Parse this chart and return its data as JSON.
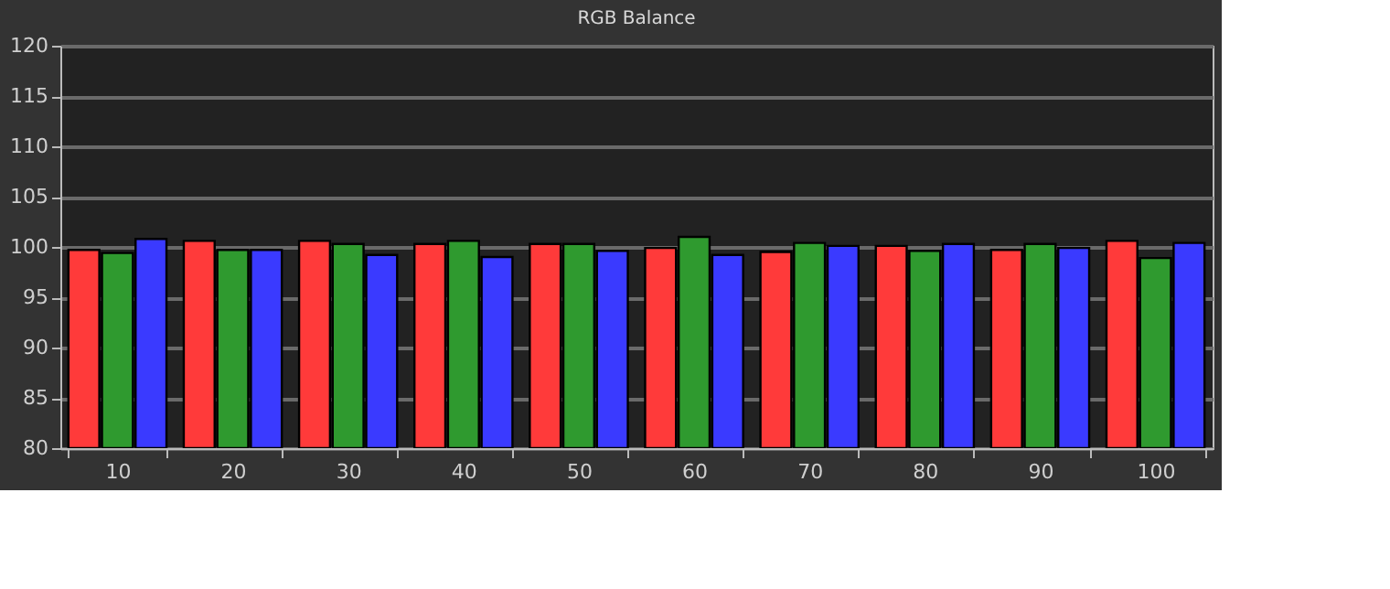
{
  "chart_data": {
    "type": "bar",
    "title": "RGB Balance",
    "categories": [
      "10",
      "20",
      "30",
      "40",
      "50",
      "60",
      "70",
      "80",
      "90",
      "100"
    ],
    "series": [
      {
        "color": "#ff3a3a",
        "values": [
          99.7,
          100.6,
          100.6,
          100.3,
          100.3,
          99.9,
          99.5,
          100.1,
          99.7,
          100.6
        ]
      },
      {
        "color": "#2f9a2f",
        "values": [
          99.4,
          99.7,
          100.3,
          100.6,
          100.3,
          101.0,
          100.4,
          99.6,
          100.3,
          98.9
        ]
      },
      {
        "color": "#3a3aff",
        "values": [
          100.8,
          99.7,
          99.2,
          99.0,
          99.6,
          99.2,
          100.1,
          100.3,
          99.9,
          100.4
        ]
      }
    ],
    "ylim": [
      80,
      120
    ],
    "yticks": [
      80,
      85,
      90,
      95,
      100,
      105,
      110,
      115,
      120
    ],
    "grid": "y"
  }
}
